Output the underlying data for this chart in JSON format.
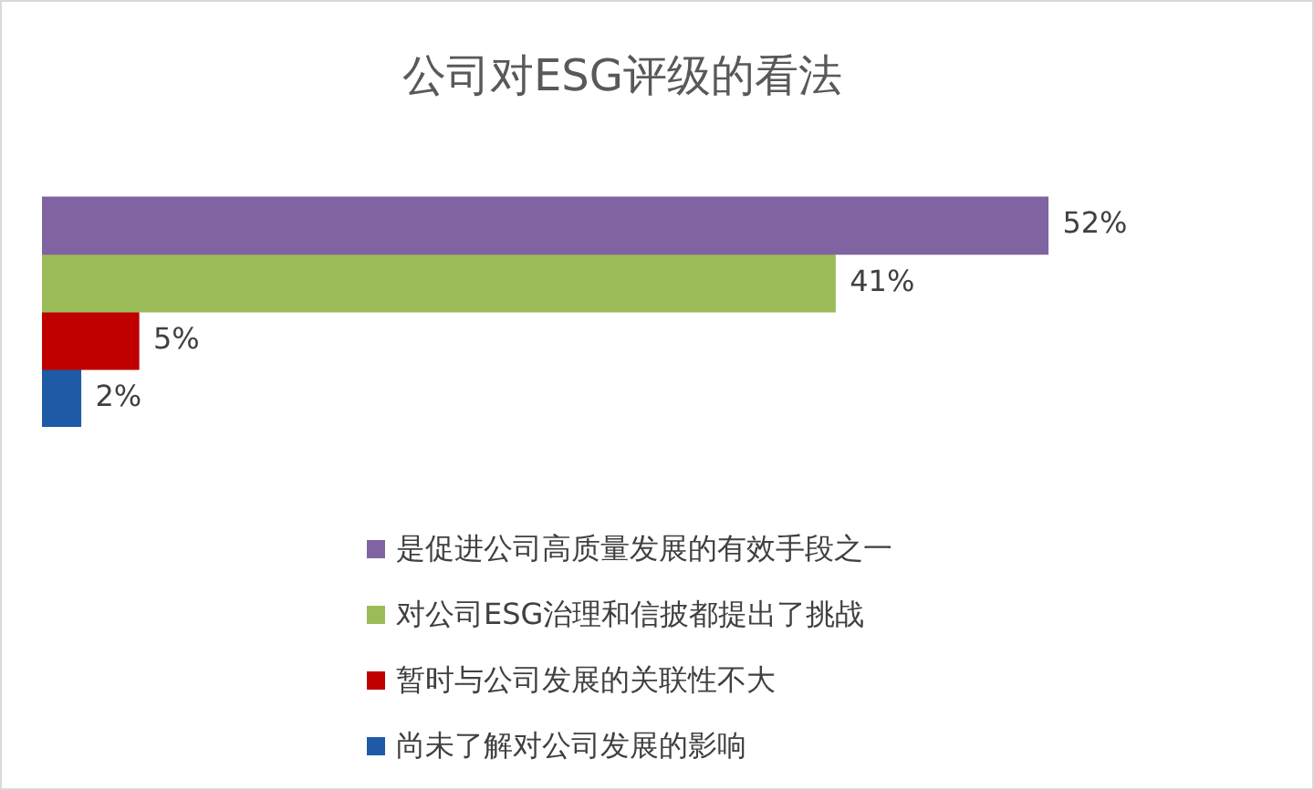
{
  "chart_data": {
    "type": "bar",
    "orientation": "horizontal",
    "title": "公司对ESG评级的看法",
    "categories": [
      null
    ],
    "legend": "bottom",
    "tick_labels": false,
    "series": [
      {
        "name": "是促进公司高质量发展的有效手段之一",
        "color": "#8064a2",
        "values": [
          52
        ],
        "value_labels": [
          "52%"
        ]
      },
      {
        "name": "对公司ESG治理和信披都提出了挑战",
        "color": "#9bbb59",
        "values": [
          41
        ],
        "value_labels": [
          "41%"
        ]
      },
      {
        "name": "暂时与公司发展的关联性不大",
        "color": "#c00000",
        "values": [
          5
        ],
        "value_labels": [
          "5%"
        ]
      },
      {
        "name": "尚未了解对公司发展的影响",
        "color": "#1f5aa6",
        "values": [
          2
        ],
        "value_labels": [
          "2%"
        ]
      }
    ]
  }
}
